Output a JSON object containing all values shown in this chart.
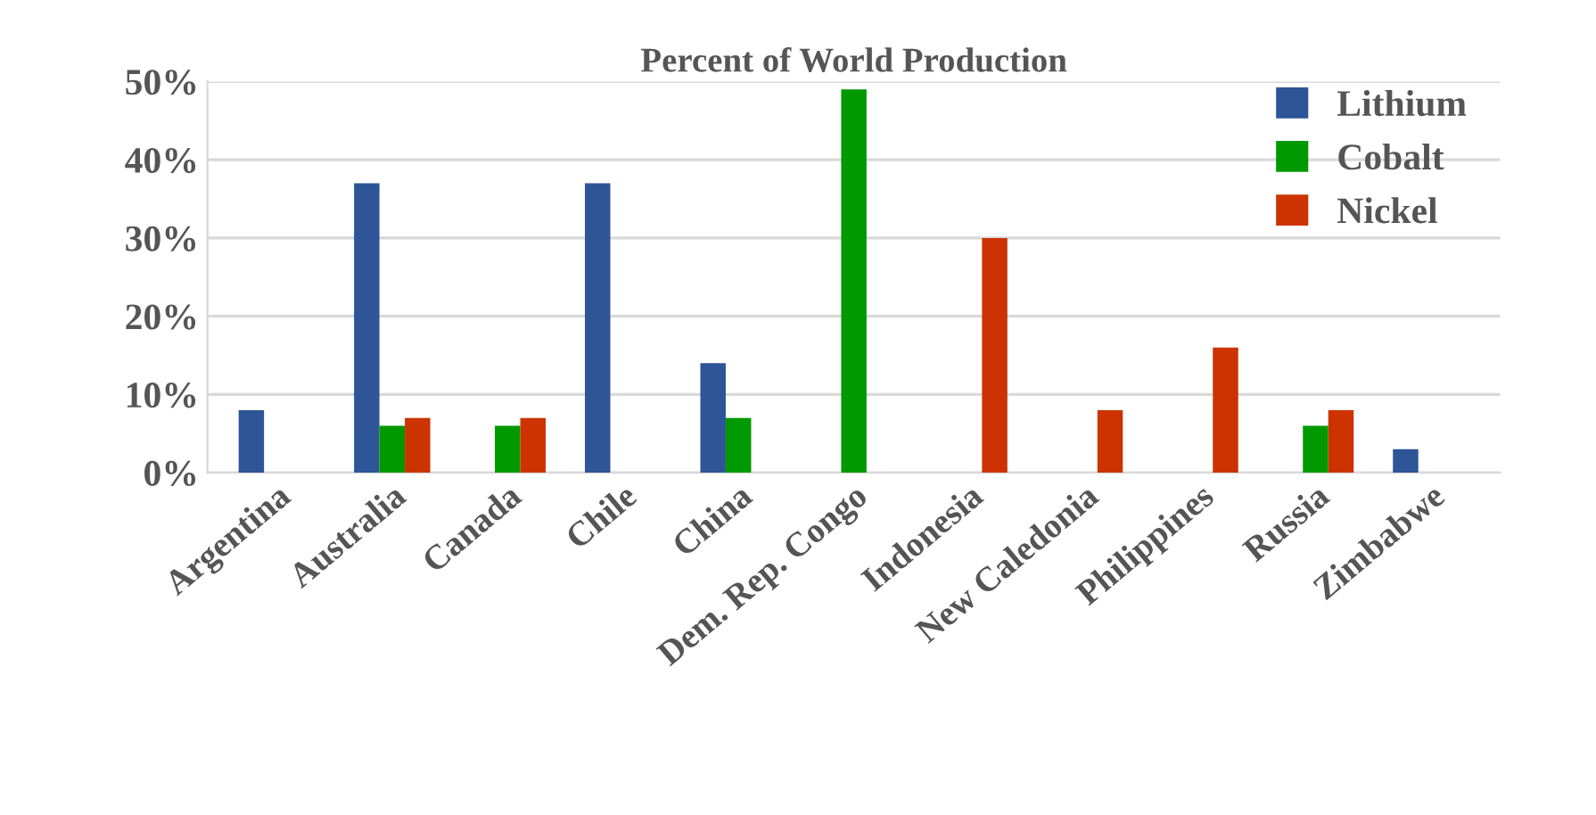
{
  "chart_data": {
    "type": "bar",
    "title": "Percent of World Production",
    "categories": [
      "Argentina",
      "Australia",
      "Canada",
      "Chile",
      "China",
      "Dem. Rep. Congo",
      "Indonesia",
      "New Caledonia",
      "Philippines",
      "Russia",
      "Zimbabwe"
    ],
    "series": [
      {
        "name": "Lithium",
        "color": "#2e5597",
        "values": [
          8,
          37,
          0,
          37,
          14,
          0,
          0,
          0,
          0,
          0,
          3
        ]
      },
      {
        "name": "Cobalt",
        "color": "#009900",
        "values": [
          0,
          6,
          6,
          0,
          7,
          49,
          0,
          0,
          0,
          6,
          0
        ]
      },
      {
        "name": "Nickel",
        "color": "#cc3300",
        "values": [
          0,
          7,
          7,
          0,
          0,
          0,
          30,
          8,
          16,
          8,
          0
        ]
      }
    ],
    "ylim": [
      0,
      50
    ],
    "yticks": [
      {
        "value": 0,
        "label": "0%"
      },
      {
        "value": 10,
        "label": "10%"
      },
      {
        "value": 20,
        "label": "20%"
      },
      {
        "value": 30,
        "label": "30%"
      },
      {
        "value": 40,
        "label": "40%"
      },
      {
        "value": 50,
        "label": "50%"
      }
    ],
    "grid": "y",
    "legend": "right"
  }
}
